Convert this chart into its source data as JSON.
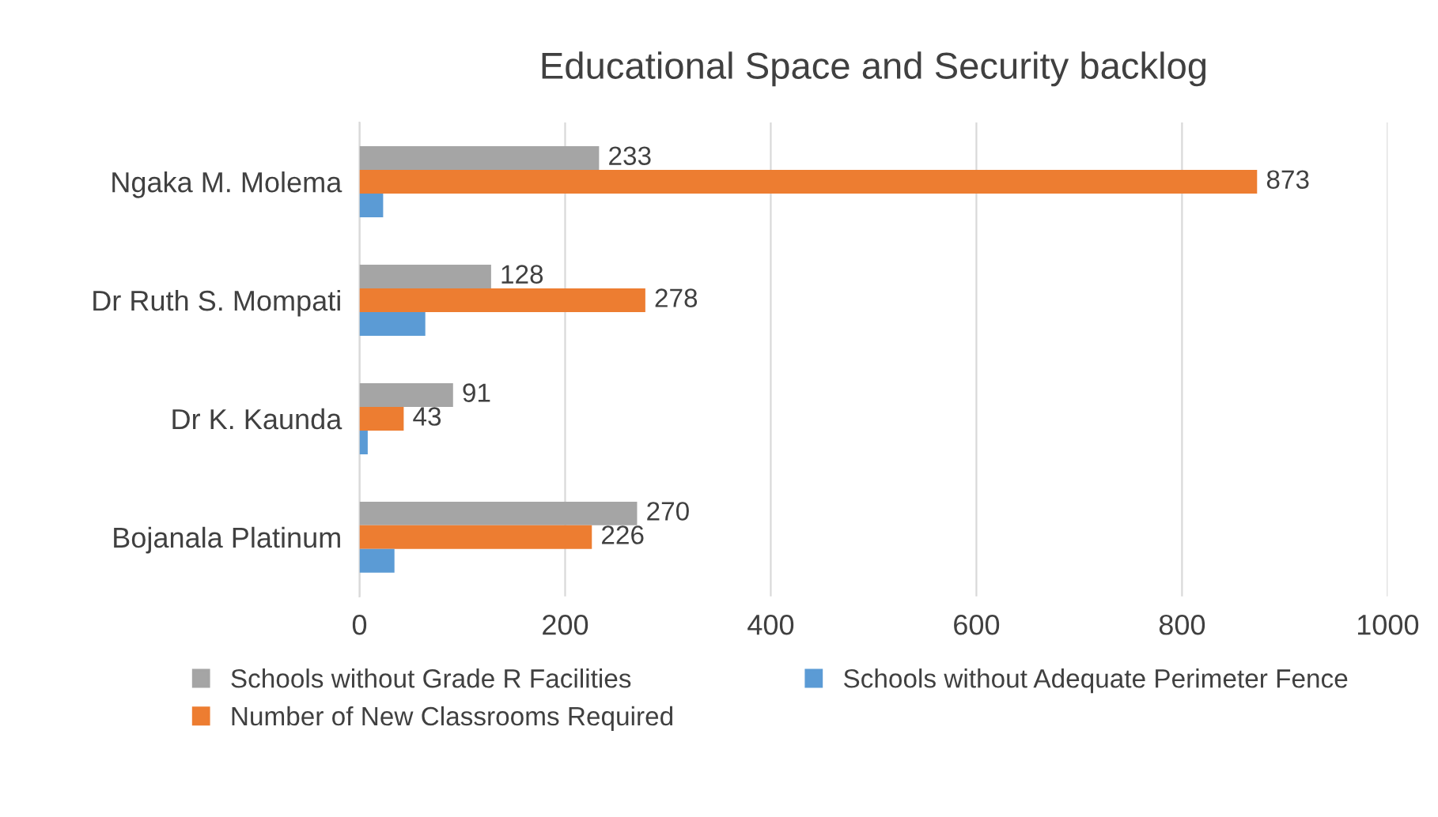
{
  "chart_data": {
    "type": "bar",
    "orientation": "horizontal",
    "title": "Educational Space and Security backlog",
    "categories": [
      "Ngaka M. Molema",
      "Dr Ruth S. Mompati",
      "Dr K. Kaunda",
      "Bojanala Platinum"
    ],
    "series": [
      {
        "name": "Schools without Grade R Facilities",
        "color": "#a5a5a5",
        "values": [
          233,
          128,
          91,
          270
        ],
        "value_labels": [
          "233",
          "128",
          "91",
          "270"
        ]
      },
      {
        "name": "Number of New Classrooms Required",
        "color": "#ed7d31",
        "values": [
          873,
          278,
          43,
          226
        ],
        "value_labels": [
          "873",
          "278",
          "43",
          "226"
        ]
      },
      {
        "name": "Schools without Adequate Perimeter Fence",
        "color": "#5b9bd5",
        "values": [
          23,
          64,
          8,
          34
        ]
      }
    ],
    "xlim": [
      0,
      1000
    ],
    "xticks": [
      0,
      200,
      400,
      600,
      800,
      1000
    ],
    "grid": "x",
    "legend": "bottom"
  }
}
